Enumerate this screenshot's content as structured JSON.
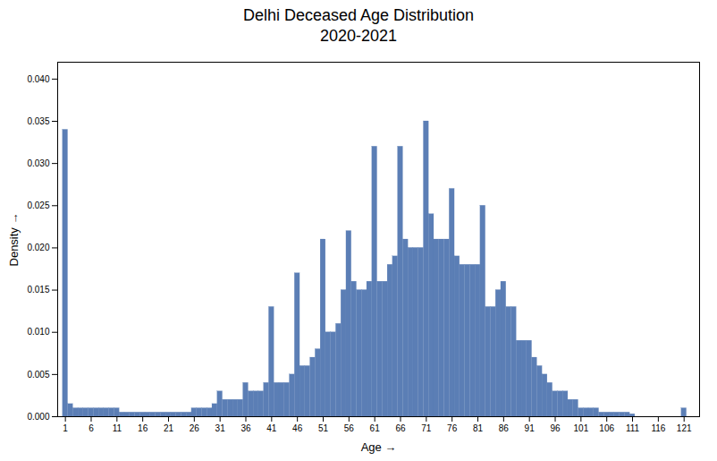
{
  "chart_data": {
    "type": "bar",
    "title": "Delhi Deceased Age Distribution\n2020-2021",
    "xlabel": "Age",
    "ylabel": "Density",
    "color": "#5b7eb5",
    "x": [
      1,
      2,
      3,
      4,
      5,
      6,
      7,
      8,
      9,
      10,
      11,
      12,
      13,
      14,
      15,
      16,
      17,
      18,
      19,
      20,
      21,
      22,
      23,
      24,
      25,
      26,
      27,
      28,
      29,
      30,
      31,
      32,
      33,
      34,
      35,
      36,
      37,
      38,
      39,
      40,
      41,
      42,
      43,
      44,
      45,
      46,
      47,
      48,
      49,
      50,
      51,
      52,
      53,
      54,
      55,
      56,
      57,
      58,
      59,
      60,
      61,
      62,
      63,
      64,
      65,
      66,
      67,
      68,
      69,
      70,
      71,
      72,
      73,
      74,
      75,
      76,
      77,
      78,
      79,
      80,
      81,
      82,
      83,
      84,
      85,
      86,
      87,
      88,
      89,
      90,
      91,
      92,
      93,
      94,
      95,
      96,
      97,
      98,
      99,
      100,
      101,
      102,
      103,
      104,
      105,
      106,
      107,
      108,
      109,
      110,
      111,
      121
    ],
    "values": [
      0.034,
      0.0015,
      0.001,
      0.001,
      0.001,
      0.001,
      0.001,
      0.001,
      0.001,
      0.001,
      0.001,
      0.0005,
      0.0005,
      0.0005,
      0.0005,
      0.0005,
      0.0005,
      0.0005,
      0.0005,
      0.0005,
      0.0005,
      0.0005,
      0.0005,
      0.0005,
      0.0005,
      0.001,
      0.001,
      0.001,
      0.001,
      0.0015,
      0.003,
      0.002,
      0.002,
      0.002,
      0.002,
      0.004,
      0.003,
      0.003,
      0.003,
      0.004,
      0.013,
      0.004,
      0.004,
      0.004,
      0.005,
      0.017,
      0.006,
      0.006,
      0.007,
      0.008,
      0.021,
      0.01,
      0.01,
      0.011,
      0.015,
      0.022,
      0.016,
      0.015,
      0.015,
      0.016,
      0.032,
      0.016,
      0.016,
      0.018,
      0.019,
      0.032,
      0.021,
      0.02,
      0.02,
      0.02,
      0.035,
      0.024,
      0.021,
      0.021,
      0.021,
      0.027,
      0.019,
      0.018,
      0.018,
      0.018,
      0.018,
      0.025,
      0.013,
      0.013,
      0.015,
      0.016,
      0.013,
      0.013,
      0.009,
      0.009,
      0.009,
      0.007,
      0.006,
      0.005,
      0.004,
      0.003,
      0.003,
      0.003,
      0.002,
      0.002,
      0.001,
      0.001,
      0.001,
      0.001,
      0.0005,
      0.0005,
      0.0005,
      0.0005,
      0.0005,
      0.0005,
      0.0003,
      0.001
    ],
    "xlim": [
      -0.5,
      124
    ],
    "xticks": [
      1,
      6,
      11,
      16,
      21,
      26,
      31,
      36,
      41,
      46,
      51,
      56,
      61,
      66,
      71,
      76,
      81,
      86,
      91,
      96,
      101,
      106,
      111,
      116,
      121
    ],
    "ylim": [
      0,
      0.042
    ],
    "yticks": [
      {
        "value": 0,
        "label": "0.000"
      },
      {
        "value": 0.005,
        "label": "0.005"
      },
      {
        "value": 0.01,
        "label": "0.010"
      },
      {
        "value": 0.015,
        "label": "0.015"
      },
      {
        "value": 0.02,
        "label": "0.020"
      },
      {
        "value": 0.025,
        "label": "0.025"
      },
      {
        "value": 0.03,
        "label": "0.030"
      },
      {
        "value": 0.035,
        "label": "0.035"
      },
      {
        "value": 0.04,
        "label": "0.040"
      }
    ]
  }
}
